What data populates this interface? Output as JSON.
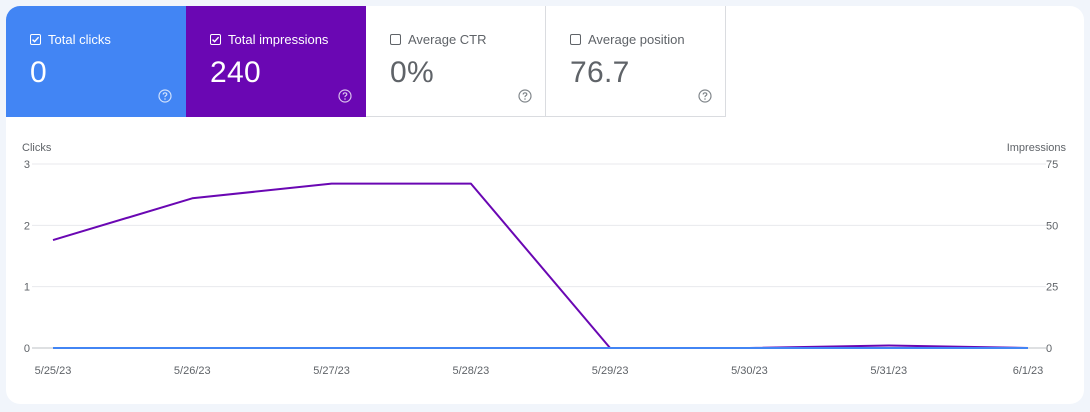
{
  "metrics": [
    {
      "label": "Total clicks",
      "value": "0",
      "checked": true
    },
    {
      "label": "Total impressions",
      "value": "240",
      "checked": true
    },
    {
      "label": "Average CTR",
      "value": "0%",
      "checked": false
    },
    {
      "label": "Average position",
      "value": "76.7",
      "checked": false
    }
  ],
  "colors": {
    "clicks": "#4285f4",
    "impressions": "#6a07b3"
  },
  "chart_data": {
    "type": "line",
    "x": [
      "5/25/23",
      "5/26/23",
      "5/27/23",
      "5/28/23",
      "5/29/23",
      "5/30/23",
      "5/31/23",
      "6/1/23"
    ],
    "series": [
      {
        "name": "Clicks",
        "axis": "left",
        "values": [
          0,
          0,
          0,
          0,
          0,
          0,
          0,
          0
        ]
      },
      {
        "name": "Impressions",
        "axis": "right",
        "values": [
          44,
          61,
          67,
          67,
          0,
          0,
          1,
          0
        ]
      }
    ],
    "ylabel_left": "Clicks",
    "ylabel_right": "Impressions",
    "ylim_left": [
      0,
      3
    ],
    "ylim_right": [
      0,
      75
    ],
    "yticks_left": [
      "0",
      "1",
      "2",
      "3"
    ],
    "yticks_right": [
      "0",
      "25",
      "50",
      "75"
    ],
    "grid": true
  }
}
